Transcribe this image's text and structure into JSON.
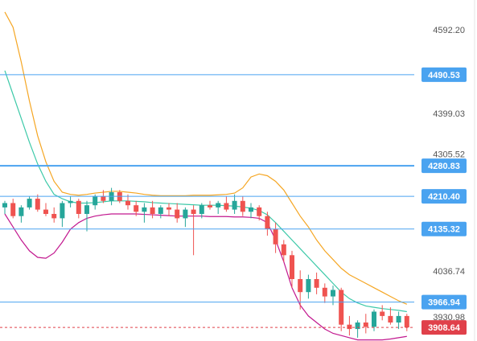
{
  "chart_data": {
    "type": "candlestick",
    "ylim": [
      3877.4,
      4662.6
    ],
    "yticks": [
      {
        "value": 4592.2,
        "label": "4592.20"
      },
      4399.03,
      4305.52,
      4036.74,
      3930.98
    ],
    "up_color": "#26a69a",
    "down_color": "#ef5350",
    "open": [
      4185,
      4195,
      4165,
      4185,
      4205,
      4180,
      4170,
      4160,
      4195,
      4200,
      4170,
      4190,
      4210,
      4200,
      4220,
      4200,
      4190,
      4175,
      4185,
      4170,
      4185,
      4180,
      4160,
      4180,
      4170,
      4190,
      4185,
      4195,
      4180,
      4200,
      4175,
      4185,
      4165,
      4135,
      4100,
      4075,
      4020,
      3990,
      4020,
      4000,
      3980,
      3995,
      3915,
      3905,
      3920,
      3910,
      3945,
      3935,
      3920,
      3935
    ],
    "high": [
      4200,
      4205,
      4190,
      4210,
      4215,
      4195,
      4185,
      4200,
      4210,
      4205,
      4200,
      4215,
      4225,
      4230,
      4225,
      4215,
      4200,
      4195,
      4200,
      4190,
      4195,
      4195,
      4185,
      4190,
      4195,
      4200,
      4200,
      4210,
      4215,
      4210,
      4195,
      4190,
      4175,
      4150,
      4110,
      4085,
      4040,
      4030,
      4035,
      4010,
      4005,
      4000,
      3935,
      3925,
      3940,
      3950,
      3960,
      3955,
      3945,
      3940
    ],
    "low": [
      4170,
      4160,
      4150,
      4180,
      4175,
      4165,
      4150,
      4140,
      4185,
      4160,
      4130,
      4180,
      4195,
      4190,
      4195,
      4180,
      4165,
      4150,
      4160,
      4160,
      4165,
      4150,
      4140,
      4075,
      4160,
      4180,
      4170,
      4175,
      4170,
      4165,
      4160,
      4155,
      4120,
      4080,
      4060,
      4000,
      3950,
      3975,
      3985,
      3965,
      3960,
      3900,
      3890,
      3885,
      3895,
      3900,
      3925,
      3915,
      3905,
      3900
    ],
    "close": [
      4195,
      4165,
      4185,
      4205,
      4180,
      4170,
      4160,
      4195,
      4200,
      4170,
      4190,
      4210,
      4200,
      4220,
      4200,
      4190,
      4175,
      4185,
      4170,
      4185,
      4180,
      4160,
      4180,
      4170,
      4190,
      4185,
      4195,
      4180,
      4200,
      4175,
      4185,
      4165,
      4135,
      4100,
      4075,
      4020,
      3990,
      4020,
      4000,
      3980,
      3995,
      3915,
      3905,
      3920,
      3910,
      3945,
      3935,
      3920,
      3935,
      3908.64
    ],
    "bands": [
      {
        "color": "#f5a623",
        "values": [
          4635,
          4600,
          4520,
          4430,
          4350,
          4290,
          4245,
          4220,
          4215,
          4213,
          4215,
          4218,
          4220,
          4222,
          4222,
          4220,
          4218,
          4215,
          4213,
          4212,
          4212,
          4212,
          4212,
          4213,
          4213,
          4213,
          4214,
          4215,
          4218,
          4230,
          4255,
          4262,
          4258,
          4245,
          4225,
          4195,
          4165,
          4140,
          4110,
          4085,
          4065,
          4045,
          4030,
          4020,
          4010,
          4000,
          3990,
          3980,
          3970,
          3962
        ]
      },
      {
        "color": "#3cc9a8",
        "values": [
          4500,
          4445,
          4390,
          4335,
          4285,
          4245,
          4215,
          4205,
          4198,
          4195,
          4195,
          4196,
          4198,
          4200,
          4200,
          4200,
          4199,
          4198,
          4196,
          4195,
          4194,
          4193,
          4192,
          4191,
          4190,
          4190,
          4190,
          4189,
          4188,
          4186,
          4183,
          4178,
          4168,
          4150,
          4130,
          4110,
          4090,
          4070,
          4050,
          4030,
          4010,
          3990,
          3975,
          3965,
          3958,
          3955,
          3952,
          3950,
          3948,
          3945
        ]
      },
      {
        "color": "#c2188f",
        "values": [
          4170,
          4140,
          4110,
          4085,
          4070,
          4068,
          4080,
          4105,
          4135,
          4150,
          4160,
          4165,
          4168,
          4170,
          4170,
          4170,
          4170,
          4169,
          4168,
          4167,
          4166,
          4165,
          4165,
          4165,
          4165,
          4164,
          4164,
          4164,
          4163,
          4163,
          4162,
          4160,
          4150,
          4110,
          4060,
          4000,
          3960,
          3935,
          3920,
          3905,
          3895,
          3890,
          3885,
          3880,
          3880,
          3880,
          3880,
          3882,
          3885,
          3888
        ]
      }
    ],
    "price_lines": [
      {
        "value": 4490.53,
        "color": "#4aa3f0"
      },
      {
        "value": 4280.83,
        "color": "#4aa3f0"
      },
      {
        "value": 4210.4,
        "label": "4210.40",
        "color": "#4aa3f0"
      },
      {
        "value": 4135.32,
        "color": "#4aa3f0"
      },
      {
        "value": 3966.94,
        "color": "#4aa3f0"
      },
      {
        "value": 3908.64,
        "color": "#e0404a"
      }
    ]
  }
}
